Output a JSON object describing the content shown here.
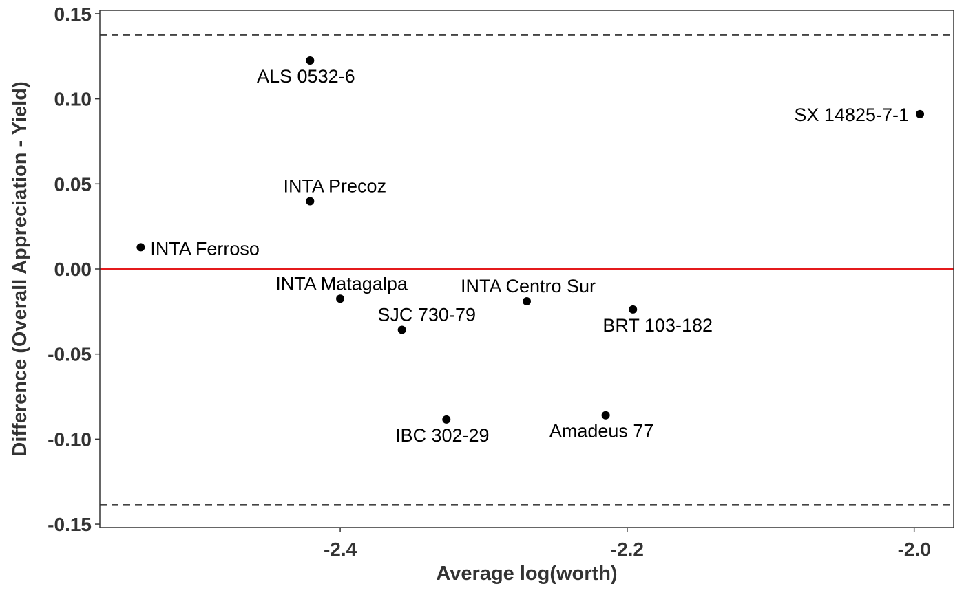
{
  "chart_data": {
    "type": "scatter",
    "title": "",
    "xlabel": "Average log(worth)",
    "ylabel": "Difference (Overall Appreciation - Yield)",
    "xlim": [
      -2.5675,
      -1.9725
    ],
    "ylim": [
      -0.152,
      0.152
    ],
    "x_ticks": [
      -2.4,
      -2.2,
      -2.0
    ],
    "x_tick_labels": [
      "-2.4",
      "-2.2",
      "-2.0"
    ],
    "y_ticks": [
      -0.15,
      -0.1,
      -0.05,
      0.0,
      0.05,
      0.1,
      0.15
    ],
    "y_tick_labels": [
      "-0.15",
      "-0.10",
      "-0.05",
      "0.00",
      "0.05",
      "0.10",
      "0.15"
    ],
    "grid": false,
    "reference_lines": [
      {
        "y": 0.0,
        "style": "solid",
        "color": "#e41a1c"
      },
      {
        "y": 0.1375,
        "style": "dashed",
        "color": "#444444"
      },
      {
        "y": -0.1385,
        "style": "dashed",
        "color": "#444444"
      }
    ],
    "points": [
      {
        "label": "ALS 0532-6",
        "x": -2.421,
        "y": 0.1225,
        "label_pos": "below-left"
      },
      {
        "label": "SX 14825-7-1",
        "x": -1.996,
        "y": 0.091,
        "label_pos": "left"
      },
      {
        "label": "INTA Precoz",
        "x": -2.421,
        "y": 0.0398,
        "label_pos": "above-right"
      },
      {
        "label": "INTA Ferroso",
        "x": -2.539,
        "y": 0.0128,
        "label_pos": "right"
      },
      {
        "label": "INTA Matagalpa",
        "x": -2.4,
        "y": -0.0175,
        "label_pos": "above-left"
      },
      {
        "label": "INTA Centro Sur",
        "x": -2.27,
        "y": -0.019,
        "label_pos": "above-left"
      },
      {
        "label": "BRT 103-182",
        "x": -2.196,
        "y": -0.0238,
        "label_pos": "below-right"
      },
      {
        "label": "SJC 730-79",
        "x": -2.357,
        "y": -0.0358,
        "label_pos": "above-right"
      },
      {
        "label": "IBC 302-29",
        "x": -2.326,
        "y": -0.0885,
        "label_pos": "below-left"
      },
      {
        "label": "Amadeus 77",
        "x": -2.215,
        "y": -0.086,
        "label_pos": "below-left"
      }
    ],
    "colors": {
      "point": "#000000",
      "zero_line": "#e41a1c",
      "limit_line": "#444444",
      "panel_border": "#333333",
      "text": "#333333"
    }
  }
}
